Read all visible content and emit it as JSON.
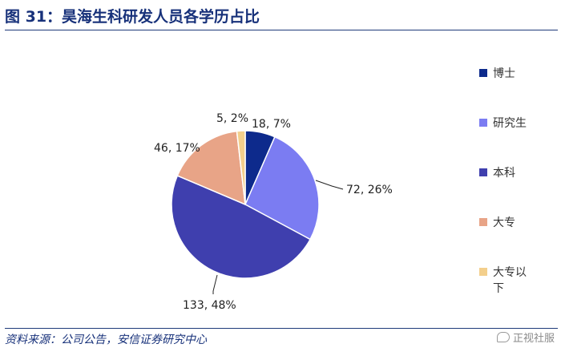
{
  "figure": {
    "title": "图 31：昊海生科研发人员各学历占比",
    "source": "资料来源：公司公告，安信证券研究中心",
    "watermark": "正视社服"
  },
  "chart_data": {
    "type": "pie",
    "title": "",
    "slices": [
      {
        "name": "博士",
        "value": 18,
        "percent": "7%",
        "label": "18, 7%",
        "color": "#0d2a8c"
      },
      {
        "name": "研究生",
        "value": 72,
        "percent": "26%",
        "label": "72, 26%",
        "color": "#7b7cf2"
      },
      {
        "name": "本科",
        "value": 133,
        "percent": "48%",
        "label": "133, 48%",
        "color": "#3f3fae"
      },
      {
        "name": "大专",
        "value": 46,
        "percent": "17%",
        "label": "46, 17%",
        "color": "#e8a487"
      },
      {
        "name": "大专以下",
        "value": 5,
        "percent": "2%",
        "label": "5, 2%",
        "color": "#f3cf8c"
      }
    ],
    "legend": {
      "position": "right",
      "items": [
        {
          "lines": [
            "博士"
          ],
          "color": "#0d2a8c"
        },
        {
          "lines": [
            "研究生"
          ],
          "color": "#7b7cf2"
        },
        {
          "lines": [
            "本科"
          ],
          "color": "#3f3fae"
        },
        {
          "lines": [
            "大专"
          ],
          "color": "#e8a487"
        },
        {
          "lines": [
            "大专以",
            "下"
          ],
          "color": "#f3cf8c"
        }
      ]
    }
  }
}
